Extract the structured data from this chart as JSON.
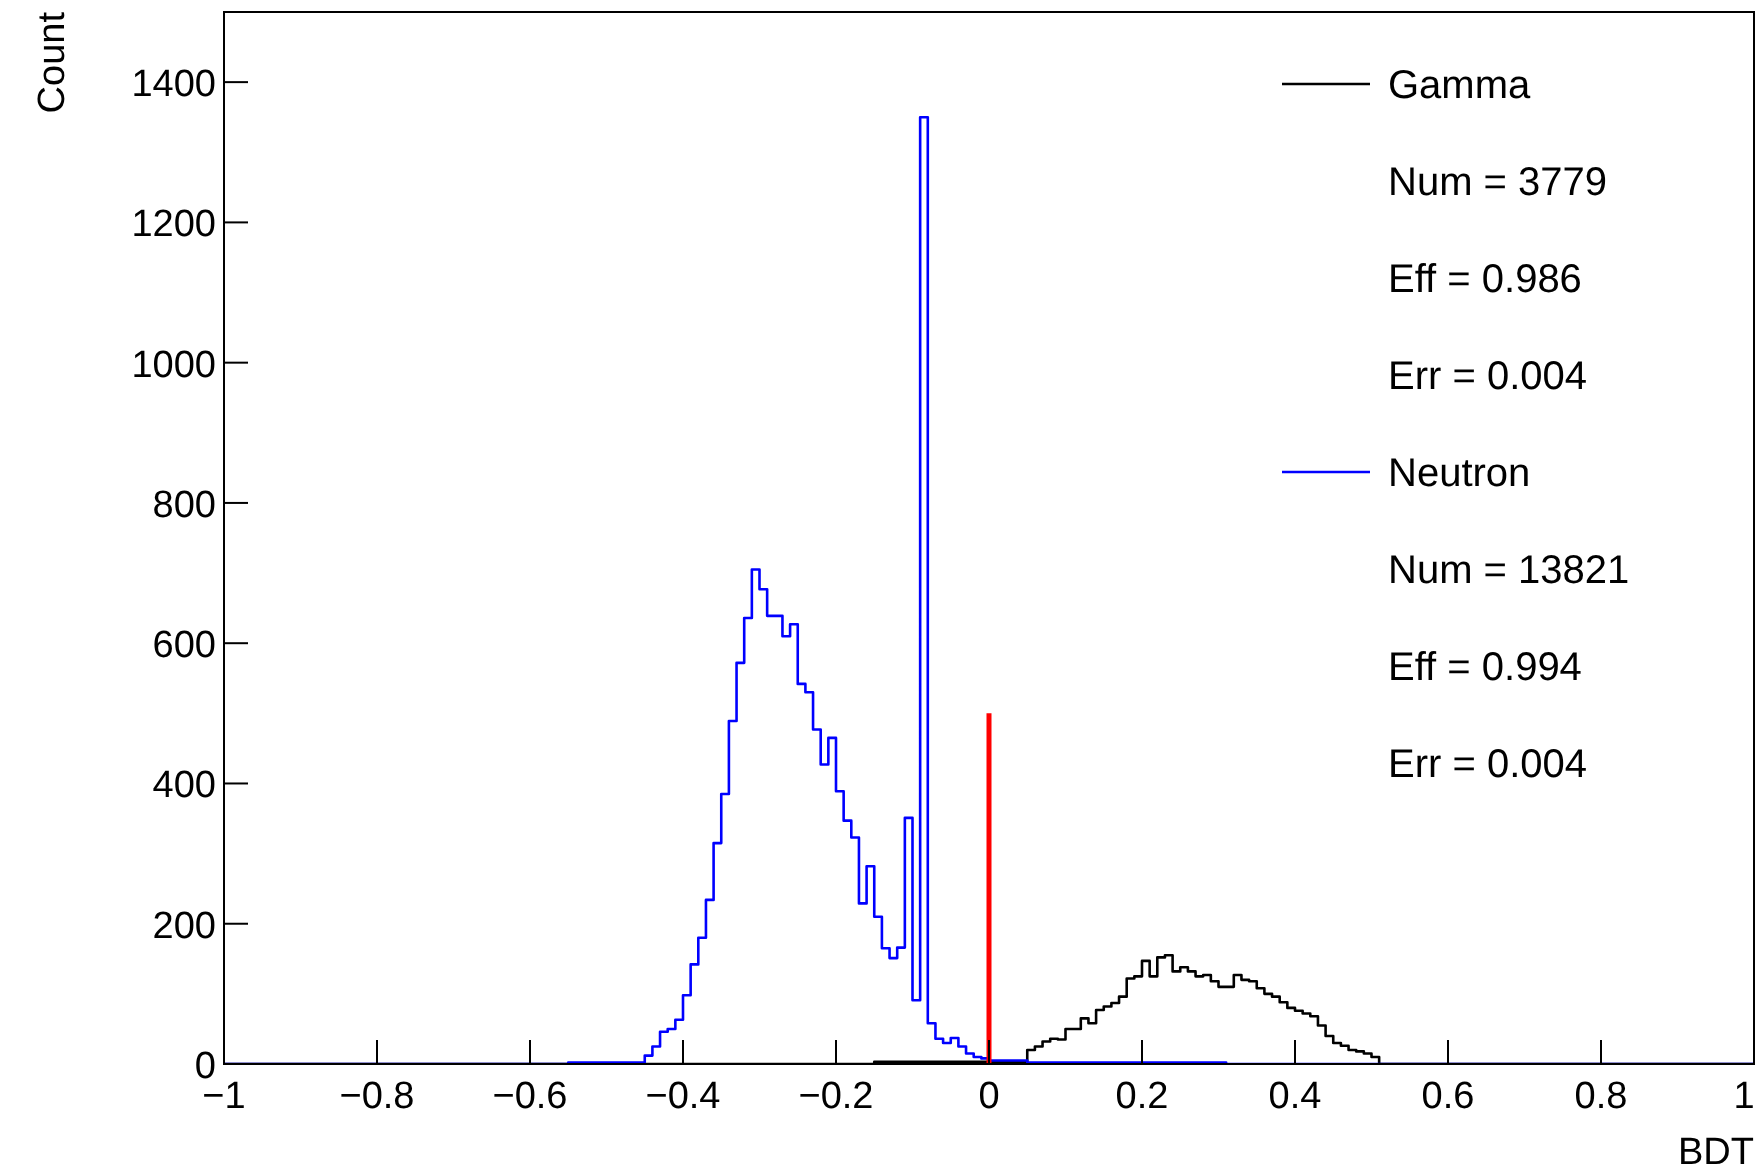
{
  "chart_data": {
    "type": "histogram",
    "xlabel": "BDT",
    "ylabel": "Count",
    "bins": [
      -1,
      -0.99,
      -0.98,
      -0.97,
      -0.96,
      -0.95,
      -0.94,
      -0.93,
      -0.92,
      -0.91,
      -0.9,
      -0.89,
      -0.88,
      -0.87,
      -0.86,
      -0.85,
      -0.84,
      -0.83,
      -0.82,
      -0.81,
      -0.8,
      -0.79,
      -0.78,
      -0.77,
      -0.76,
      -0.75,
      -0.74,
      -0.73,
      -0.72,
      -0.71,
      -0.7,
      -0.69,
      -0.68,
      -0.67,
      -0.66,
      -0.65,
      -0.64,
      -0.63,
      -0.62,
      -0.61,
      -0.6,
      -0.59,
      -0.58,
      -0.57,
      -0.56,
      -0.55,
      -0.54,
      -0.53,
      -0.52,
      -0.51,
      -0.5,
      -0.49,
      -0.48,
      -0.47,
      -0.46,
      -0.45,
      -0.44,
      -0.43,
      -0.42,
      -0.41,
      -0.4,
      -0.39,
      -0.38,
      -0.37,
      -0.36,
      -0.35,
      -0.34,
      -0.33,
      -0.32,
      -0.31,
      -0.3,
      -0.29,
      -0.28,
      -0.27,
      -0.26,
      -0.25,
      -0.24,
      -0.23,
      -0.22,
      -0.21,
      -0.2,
      -0.19,
      -0.18,
      -0.17,
      -0.16,
      -0.15,
      -0.14,
      -0.13,
      -0.12,
      -0.11,
      -0.1,
      -0.09,
      -0.08,
      -0.07,
      -0.06,
      -0.05,
      -0.04,
      -0.03,
      -0.02,
      -0.01,
      0,
      0.01,
      0.02,
      0.03,
      0.04,
      0.05,
      0.06,
      0.07,
      0.08,
      0.09,
      0.1,
      0.11,
      0.12,
      0.13,
      0.14,
      0.15,
      0.16,
      0.17,
      0.18,
      0.19,
      0.2,
      0.21,
      0.22,
      0.23,
      0.24,
      0.25,
      0.26,
      0.27,
      0.28,
      0.29,
      0.3,
      0.31,
      0.32,
      0.33,
      0.34,
      0.35,
      0.36,
      0.37,
      0.38,
      0.39,
      0.4,
      0.41,
      0.42,
      0.43,
      0.44,
      0.45,
      0.46,
      0.47,
      0.48,
      0.49,
      0.5,
      0.51,
      0.52,
      0.53,
      0.54,
      0.55,
      0.56,
      0.57,
      0.58,
      0.59,
      0.6,
      0.61,
      0.62,
      0.63,
      0.64,
      0.65,
      0.66,
      0.67,
      0.68,
      0.69,
      0.7,
      0.71,
      0.72,
      0.73,
      0.74,
      0.75,
      0.76,
      0.77,
      0.78,
      0.79,
      0.8,
      0.81,
      0.82,
      0.83,
      0.84,
      0.85,
      0.86,
      0.87,
      0.88,
      0.89,
      0.9,
      0.91,
      0.92,
      0.93,
      0.94,
      0.95,
      0.96,
      0.97,
      0.98,
      0.99,
      1
    ],
    "series": [
      {
        "name": "Gamma",
        "color": "#000000",
        "values": [
          0,
          0,
          0,
          0,
          0,
          0,
          0,
          0,
          0,
          0,
          0,
          0,
          0,
          0,
          0,
          0,
          0,
          0,
          0,
          0,
          0,
          0,
          0,
          0,
          0,
          0,
          0,
          0,
          0,
          0,
          0,
          0,
          0,
          0,
          0,
          0,
          0,
          0,
          0,
          0,
          0,
          0,
          0,
          0,
          0,
          0,
          0,
          0,
          0,
          0,
          0,
          0,
          0,
          0,
          0,
          0,
          0,
          0,
          0,
          0,
          0,
          0,
          0,
          0,
          0,
          0,
          0,
          0,
          0,
          0,
          0,
          0,
          0,
          0,
          0,
          0,
          0,
          0,
          0,
          0,
          0,
          0,
          0,
          0,
          0,
          3,
          3,
          3,
          3,
          3,
          3,
          3,
          3,
          3,
          3,
          3,
          3,
          3,
          3,
          3,
          3,
          3,
          3,
          3,
          3,
          20,
          25,
          32,
          36,
          35,
          50,
          50,
          65,
          58,
          77,
          82,
          87,
          96,
          122,
          125,
          147,
          125,
          152,
          155,
          132,
          138,
          132,
          125,
          127,
          118,
          110,
          110,
          127,
          120,
          118,
          108,
          100,
          96,
          88,
          80,
          76,
          72,
          68,
          55,
          40,
          30,
          26,
          20,
          18,
          15,
          10,
          0,
          0,
          0,
          0,
          0,
          0,
          0,
          0,
          0,
          0,
          0,
          0,
          0,
          0,
          0,
          0,
          0,
          0,
          0,
          0,
          0,
          0,
          0,
          0,
          0,
          0,
          0,
          0,
          0,
          0,
          0,
          0,
          0,
          0,
          0,
          0,
          0,
          0,
          0,
          0,
          0,
          0,
          0,
          0,
          0,
          0,
          0,
          0,
          0
        ]
      },
      {
        "name": "Neutron",
        "color": "#0000ff",
        "values": [
          0,
          0,
          0,
          0,
          0,
          0,
          0,
          0,
          0,
          0,
          0,
          0,
          0,
          0,
          0,
          0,
          0,
          0,
          0,
          0,
          0,
          0,
          0,
          0,
          0,
          0,
          0,
          0,
          0,
          0,
          0,
          0,
          0,
          0,
          0,
          0,
          0,
          0,
          0,
          0,
          0,
          0,
          0,
          0,
          0,
          2,
          2,
          2,
          2,
          2,
          2,
          2,
          2,
          2,
          2,
          12,
          25,
          46,
          50,
          63,
          98,
          142,
          180,
          234,
          315,
          385,
          489,
          572,
          636,
          705,
          677,
          639,
          639,
          610,
          627,
          542,
          530,
          477,
          427,
          465,
          389,
          347,
          323,
          229,
          282,
          210,
          165,
          151,
          166,
          351,
          91,
          1350,
          58,
          36,
          30,
          37,
          25,
          15,
          10,
          8,
          5,
          5,
          5,
          5,
          5,
          2,
          2,
          2,
          2,
          2,
          2,
          2,
          2,
          2,
          2,
          2,
          2,
          2,
          2,
          2,
          2,
          2,
          2,
          2,
          2,
          2,
          2,
          2,
          2,
          2,
          2,
          0,
          0,
          0,
          0,
          0,
          0,
          0,
          0,
          0,
          0,
          0,
          0,
          0,
          0,
          0,
          0,
          0,
          0,
          0,
          0,
          0,
          0,
          0,
          0,
          0,
          0,
          0,
          0,
          0,
          0,
          0,
          0,
          0,
          0,
          0,
          0,
          0,
          0,
          0,
          0,
          0,
          0,
          0,
          0,
          0,
          0,
          0,
          0,
          0,
          0,
          0,
          0,
          0,
          0,
          0,
          0,
          0,
          0,
          0,
          0,
          0,
          0,
          0,
          0,
          0,
          0,
          0,
          0,
          0
        ]
      },
      {
        "type": "line",
        "color": "#ff0000",
        "x": [
          0,
          0
        ],
        "values": [
          0,
          500
        ]
      }
    ],
    "annotations": [
      "Num = 3779",
      "Eff = 0.986",
      "Err = 0.004",
      "Num = 13821",
      "Eff = 0.994",
      "Err = 0.004"
    ],
    "xlim": [
      -1,
      1
    ],
    "xticks": [
      {
        "value": -1,
        "label": "−1"
      },
      {
        "value": -0.8,
        "label": "−0.8"
      },
      {
        "value": -0.6,
        "label": "−0.6"
      },
      {
        "value": -0.4,
        "label": "−0.4"
      },
      {
        "value": -0.2,
        "label": "−0.2"
      },
      0,
      0.2,
      0.4,
      0.6,
      0.8,
      1
    ],
    "ylim": [
      0,
      1500
    ],
    "yticks": [
      0,
      200,
      400,
      600,
      800,
      1000,
      1200,
      1400
    ],
    "legend": "top right",
    "grid": false
  }
}
